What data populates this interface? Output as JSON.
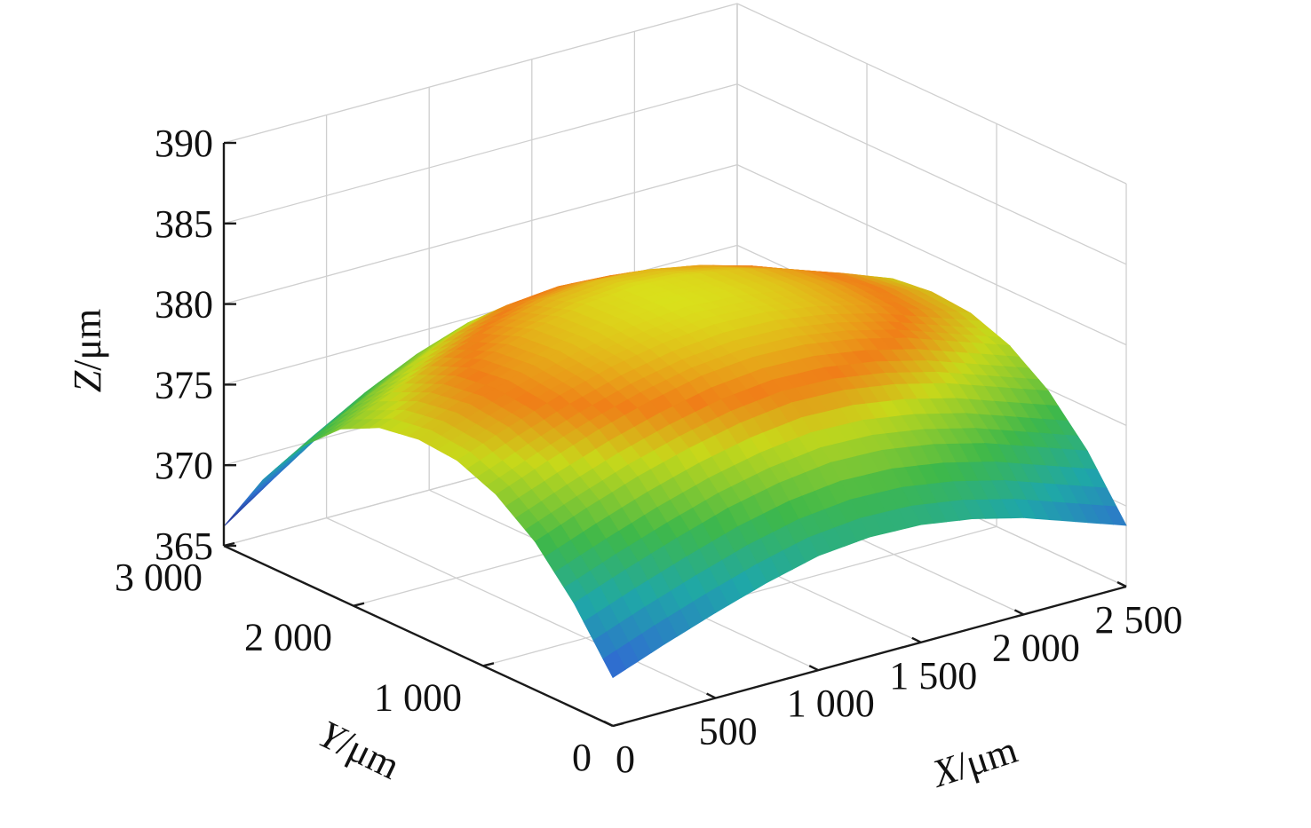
{
  "chart_data": {
    "type": "surface3d",
    "title": "",
    "xlabel": {
      "var": "X",
      "unit": "/μm"
    },
    "ylabel": {
      "var": "Y",
      "unit": "/μm"
    },
    "zlabel": {
      "var": "Z",
      "unit": "/μm"
    },
    "xlim": [
      0,
      2500
    ],
    "ylim": [
      0,
      3000
    ],
    "zlim": [
      365,
      390
    ],
    "x_ticks": [
      0,
      500,
      1000,
      1500,
      2000,
      2500
    ],
    "y_ticks": [
      0,
      1000,
      2000,
      3000
    ],
    "z_ticks": [
      365,
      370,
      375,
      380,
      385,
      390
    ],
    "x_tick_labels": [
      "0",
      "500",
      "1 000",
      "1 500",
      "2 000",
      "2 500"
    ],
    "y_tick_labels": [
      "0",
      "1 000",
      "2 000",
      "3 000"
    ],
    "z_tick_labels": [
      "365",
      "370",
      "375",
      "380",
      "385",
      "390"
    ],
    "grid": true,
    "colormap": [
      "#2b2f8f",
      "#2f6fd0",
      "#1fa7a8",
      "#3eb84a",
      "#c8d81a",
      "#f07e18",
      "#d9e21b"
    ],
    "surface_x": [
      0,
      250,
      500,
      750,
      1000,
      1250,
      1500,
      1750,
      2000,
      2250,
      2500
    ],
    "surface_y": [
      0,
      300,
      600,
      900,
      1200,
      1500,
      1800,
      2100,
      2400,
      2700,
      3000
    ],
    "surface_z": [
      [
        368.0,
        369.2,
        370.3,
        371.3,
        372.1,
        372.4,
        372.3,
        371.8,
        371.0,
        369.9,
        368.8
      ],
      [
        371.5,
        372.7,
        373.8,
        374.8,
        375.5,
        375.9,
        375.8,
        375.3,
        374.5,
        373.4,
        372.3
      ],
      [
        374.2,
        375.4,
        376.5,
        377.4,
        378.1,
        378.5,
        378.4,
        377.9,
        377.1,
        376.0,
        374.9
      ],
      [
        376.0,
        377.2,
        378.3,
        379.2,
        379.9,
        380.2,
        380.1,
        379.6,
        378.8,
        377.7,
        376.6
      ],
      [
        377.0,
        378.2,
        379.3,
        380.2,
        380.8,
        381.1,
        381.0,
        380.5,
        379.7,
        378.6,
        377.5
      ],
      [
        377.2,
        378.5,
        379.6,
        380.5,
        381.1,
        381.4,
        381.2,
        380.7,
        379.9,
        378.8,
        377.7
      ],
      [
        376.8,
        378.1,
        379.3,
        380.3,
        381.0,
        381.3,
        381.1,
        380.6,
        379.7,
        378.6,
        377.4
      ],
      [
        375.6,
        377.0,
        378.3,
        379.4,
        380.2,
        380.5,
        380.3,
        379.7,
        378.8,
        377.6,
        376.3
      ],
      [
        373.4,
        375.0,
        376.5,
        377.8,
        378.7,
        379.0,
        378.8,
        378.1,
        377.0,
        375.6,
        374.2
      ],
      [
        370.2,
        372.1,
        373.9,
        375.4,
        376.5,
        376.9,
        376.6,
        375.8,
        374.5,
        372.9,
        371.2
      ],
      [
        366.2,
        368.4,
        370.5,
        372.3,
        373.6,
        374.1,
        373.8,
        372.9,
        371.4,
        369.5,
        367.4
      ]
    ]
  }
}
